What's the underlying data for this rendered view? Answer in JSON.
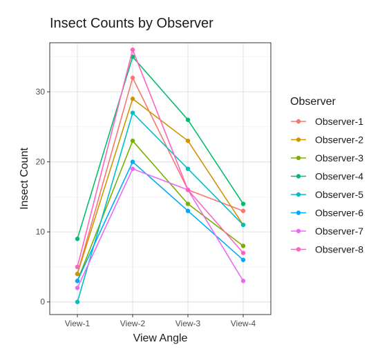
{
  "chart_data": {
    "type": "line",
    "title": "Insect Counts by Observer",
    "xlabel": "View Angle",
    "ylabel": "Insect Count",
    "categories": [
      "View-1",
      "View-2",
      "View-3",
      "View-4"
    ],
    "ylim": [
      -1.8,
      37
    ],
    "yticks": [
      0,
      10,
      20,
      30
    ],
    "grid": true,
    "legend": {
      "title": "Observer",
      "position": "right"
    },
    "series": [
      {
        "name": "Observer-1",
        "color": "#F8766D",
        "values": [
          4,
          32,
          16,
          13
        ]
      },
      {
        "name": "Observer-2",
        "color": "#CD9600",
        "values": [
          4,
          29,
          23,
          11
        ]
      },
      {
        "name": "Observer-3",
        "color": "#7CAE00",
        "values": [
          3,
          23,
          14,
          8
        ]
      },
      {
        "name": "Observer-4",
        "color": "#00BE67",
        "values": [
          9,
          35,
          26,
          14
        ]
      },
      {
        "name": "Observer-5",
        "color": "#00BFC4",
        "values": [
          0,
          27,
          19,
          11
        ]
      },
      {
        "name": "Observer-6",
        "color": "#00A9FF",
        "values": [
          3,
          20,
          13,
          6
        ]
      },
      {
        "name": "Observer-7",
        "color": "#E76BF3",
        "values": [
          2,
          19,
          16,
          3
        ]
      },
      {
        "name": "Observer-8",
        "color": "#FF61C3",
        "values": [
          5,
          36,
          16,
          7
        ]
      }
    ]
  }
}
